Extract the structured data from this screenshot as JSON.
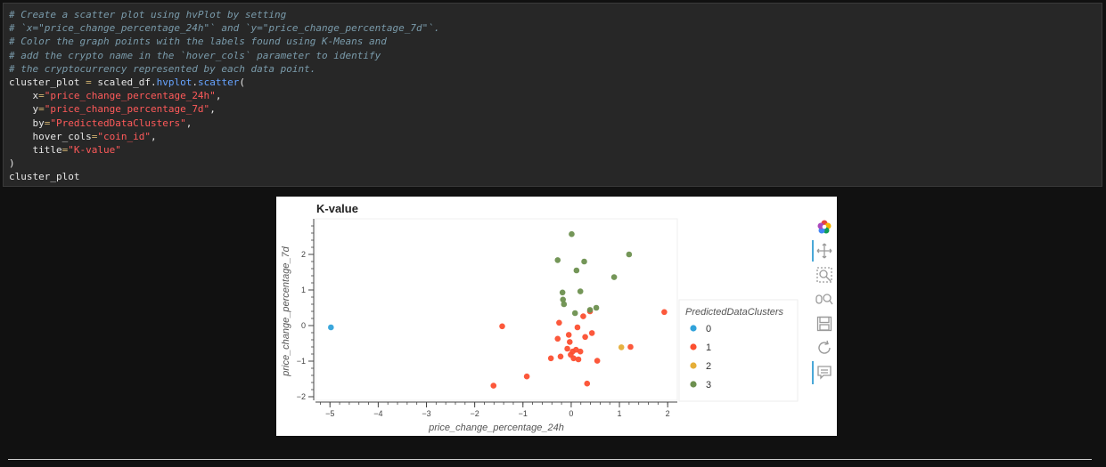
{
  "code_lines": [
    [
      {
        "t": "# Create a scatter plot using hvPlot by setting",
        "c": "cm"
      }
    ],
    [
      {
        "t": "# `x=\"price_change_percentage_24h\"` and `y=\"price_change_percentage_7d\"`.",
        "c": "cm"
      }
    ],
    [
      {
        "t": "# Color the graph points with the labels found using K-Means and",
        "c": "cm"
      }
    ],
    [
      {
        "t": "# add the crypto name in the `hover_cols` parameter to identify",
        "c": "cm"
      }
    ],
    [
      {
        "t": "# the cryptocurrency represented by each data point.",
        "c": "cm"
      }
    ],
    [
      {
        "t": "cluster_plot ",
        "c": ""
      },
      {
        "t": "=",
        "c": "op"
      },
      {
        "t": " scaled_df.",
        "c": ""
      },
      {
        "t": "hvplot",
        "c": "fn"
      },
      {
        "t": ".",
        "c": ""
      },
      {
        "t": "scatter",
        "c": "fn"
      },
      {
        "t": "(",
        "c": ""
      }
    ],
    [
      {
        "t": "    x",
        "c": ""
      },
      {
        "t": "=",
        "c": "op"
      },
      {
        "t": "\"price_change_percentage_24h\"",
        "c": "st"
      },
      {
        "t": ",",
        "c": ""
      }
    ],
    [
      {
        "t": "    y",
        "c": ""
      },
      {
        "t": "=",
        "c": "op"
      },
      {
        "t": "\"price_change_percentage_7d\"",
        "c": "st"
      },
      {
        "t": ",",
        "c": ""
      }
    ],
    [
      {
        "t": "    by",
        "c": ""
      },
      {
        "t": "=",
        "c": "op"
      },
      {
        "t": "\"PredictedDataClusters\"",
        "c": "st"
      },
      {
        "t": ",",
        "c": ""
      }
    ],
    [
      {
        "t": "    hover_cols",
        "c": ""
      },
      {
        "t": "=",
        "c": "op"
      },
      {
        "t": "\"coin_id\"",
        "c": "st"
      },
      {
        "t": ",",
        "c": ""
      }
    ],
    [
      {
        "t": "    title",
        "c": ""
      },
      {
        "t": "=",
        "c": "op"
      },
      {
        "t": "\"K-value\"",
        "c": "st"
      }
    ],
    [
      {
        "t": ")",
        "c": ""
      }
    ],
    [
      {
        "t": "cluster_plot",
        "c": ""
      }
    ]
  ],
  "chart_data": {
    "type": "scatter",
    "title": "K-value",
    "xlabel": "price_change_percentage_24h",
    "ylabel": "price_change_percentage_7d",
    "xlim": [
      -5.3,
      2.2
    ],
    "ylim": [
      -2.1,
      3.0
    ],
    "xticks": [
      -5,
      -4,
      -3,
      -2,
      -1,
      0,
      1,
      2
    ],
    "yticks": [
      -2,
      -1,
      0,
      1,
      2
    ],
    "xtick_labels": [
      "−5",
      "−4",
      "−3",
      "−2",
      "−1",
      "0",
      "1",
      "2"
    ],
    "ytick_labels": [
      "−2",
      "−1",
      "0",
      "1",
      "2"
    ],
    "grid": false,
    "legend": {
      "title": "PredictedDataClusters",
      "placement": "right"
    },
    "series": [
      {
        "name": "0",
        "color": "#30a2da",
        "points": [
          [
            -4.98,
            -0.05
          ]
        ]
      },
      {
        "name": "1",
        "color": "#fc4f30",
        "points": [
          [
            -1.43,
            -0.02
          ],
          [
            -1.61,
            -1.69
          ],
          [
            -0.92,
            -1.43
          ],
          [
            -0.42,
            -0.92
          ],
          [
            -0.28,
            -0.37
          ],
          [
            -0.25,
            0.08
          ],
          [
            -0.22,
            -0.87
          ],
          [
            -0.08,
            -0.65
          ],
          [
            -0.05,
            -0.26
          ],
          [
            -0.03,
            -0.46
          ],
          [
            -0.01,
            -0.82
          ],
          [
            0.03,
            -0.73
          ],
          [
            0.05,
            -0.92
          ],
          [
            0.1,
            -0.68
          ],
          [
            0.13,
            -0.05
          ],
          [
            0.15,
            -0.95
          ],
          [
            0.19,
            -0.73
          ],
          [
            0.25,
            0.26
          ],
          [
            0.29,
            -0.32
          ],
          [
            0.33,
            -1.63
          ],
          [
            0.39,
            0.4
          ],
          [
            0.43,
            -0.21
          ],
          [
            0.54,
            -0.99
          ],
          [
            1.23,
            -0.6
          ],
          [
            1.93,
            0.38
          ]
        ]
      },
      {
        "name": "2",
        "color": "#e5ae38",
        "points": [
          [
            1.04,
            -0.61
          ]
        ]
      },
      {
        "name": "3",
        "color": "#6d904f",
        "points": [
          [
            -0.28,
            1.84
          ],
          [
            -0.18,
            0.93
          ],
          [
            -0.17,
            0.73
          ],
          [
            -0.15,
            0.6
          ],
          [
            0.01,
            2.57
          ],
          [
            0.08,
            0.35
          ],
          [
            0.11,
            1.55
          ],
          [
            0.19,
            0.96
          ],
          [
            0.27,
            1.8
          ],
          [
            0.39,
            0.44
          ],
          [
            0.52,
            0.5
          ],
          [
            0.89,
            1.36
          ],
          [
            1.2,
            2.0
          ]
        ]
      }
    ]
  }
}
